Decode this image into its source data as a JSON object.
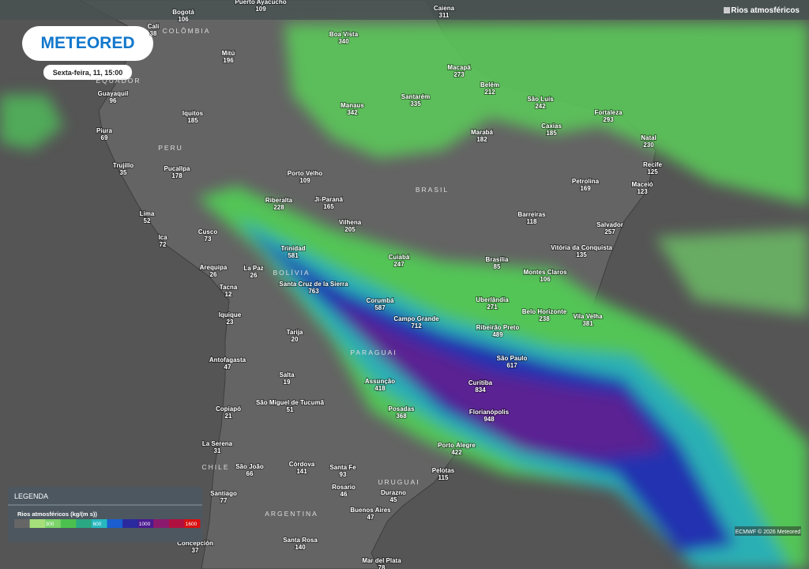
{
  "header": {
    "layer": "Rios atmosféricos",
    "logo": "METEORED",
    "datetime": "Sexta-feira, 11, 15:00"
  },
  "countries": [
    "COLÔMBIA",
    "EQUADOR",
    "PERU",
    "BRASIL",
    "BOLÍVIA",
    "PARAGUAI",
    "URUGUAI",
    "CHILE",
    "ARGENTINA"
  ],
  "cities": [
    {
      "name": "Bogotá",
      "value": 106
    },
    {
      "name": "Puerto Ayacucho",
      "value": 109
    },
    {
      "name": "Caiena",
      "value": 311
    },
    {
      "name": "Cali",
      "value": 38
    },
    {
      "name": "Boa Vista",
      "value": 340
    },
    {
      "name": "Mitú",
      "value": 196
    },
    {
      "name": "Macapá",
      "value": 273
    },
    {
      "name": "Belém",
      "value": 212
    },
    {
      "name": "Guayaquil",
      "value": 96
    },
    {
      "name": "São Luís",
      "value": 242
    },
    {
      "name": "Manaus",
      "value": 342
    },
    {
      "name": "Santarém",
      "value": 335
    },
    {
      "name": "Iquitos",
      "value": 185
    },
    {
      "name": "Fortaleza",
      "value": 293
    },
    {
      "name": "Caxias",
      "value": 185
    },
    {
      "name": "Marabá",
      "value": 182
    },
    {
      "name": "Piura",
      "value": 69
    },
    {
      "name": "Natal",
      "value": 230
    },
    {
      "name": "Trujillo",
      "value": 35
    },
    {
      "name": "Pucallpa",
      "value": 178
    },
    {
      "name": "Recife",
      "value": 125
    },
    {
      "name": "Porto Velho",
      "value": 109
    },
    {
      "name": "Maceió",
      "value": 123
    },
    {
      "name": "Petrolina",
      "value": 169
    },
    {
      "name": "Riberalta",
      "value": 228
    },
    {
      "name": "Ji-Paraná",
      "value": 165
    },
    {
      "name": "Barreiras",
      "value": 118
    },
    {
      "name": "Lima",
      "value": 52
    },
    {
      "name": "Salvador",
      "value": 257
    },
    {
      "name": "Vilhena",
      "value": 205
    },
    {
      "name": "Cusco",
      "value": 73
    },
    {
      "name": "Ica",
      "value": 72
    },
    {
      "name": "Trinidad",
      "value": 581
    },
    {
      "name": "Vitória da Conquista",
      "value": 135
    },
    {
      "name": "Cuiabá",
      "value": 247
    },
    {
      "name": "Brasília",
      "value": 85
    },
    {
      "name": "Arequipa",
      "value": 26
    },
    {
      "name": "La Paz",
      "value": 26
    },
    {
      "name": "Montes Claros",
      "value": 106
    },
    {
      "name": "Santa Cruz de la Sierra",
      "value": 763
    },
    {
      "name": "Tacna",
      "value": 12
    },
    {
      "name": "Corumbá",
      "value": 587
    },
    {
      "name": "Uberlândia",
      "value": 271
    },
    {
      "name": "Belo Horizonte",
      "value": 238
    },
    {
      "name": "Iquique",
      "value": 23
    },
    {
      "name": "Vila Velha",
      "value": 381
    },
    {
      "name": "Campo Grande",
      "value": 712
    },
    {
      "name": "Ribeirão Preto",
      "value": 489
    },
    {
      "name": "Tarija",
      "value": 20
    },
    {
      "name": "São Paulo",
      "value": 617
    },
    {
      "name": "Antofagasta",
      "value": 47
    },
    {
      "name": "Salta",
      "value": 19
    },
    {
      "name": "Assunção",
      "value": 418
    },
    {
      "name": "Curitiba",
      "value": 834
    },
    {
      "name": "São Miguel de Tucumã",
      "value": 51
    },
    {
      "name": "Posadas",
      "value": 368
    },
    {
      "name": "Copiapó",
      "value": 21
    },
    {
      "name": "Florianópolis",
      "value": 948
    },
    {
      "name": "La Serena",
      "value": 31
    },
    {
      "name": "Porto Alegre",
      "value": 422
    },
    {
      "name": "São João",
      "value": 66
    },
    {
      "name": "Córdova",
      "value": 141
    },
    {
      "name": "Santa Fe",
      "value": 93
    },
    {
      "name": "Pelotas",
      "value": 115
    },
    {
      "name": "Rosario",
      "value": 46
    },
    {
      "name": "Durazno",
      "value": 45
    },
    {
      "name": "Santiago",
      "value": 77
    },
    {
      "name": "Buenos Aires",
      "value": 47
    },
    {
      "name": "Santa Rosa",
      "value": 140
    },
    {
      "name": "Concepción",
      "value": 37
    },
    {
      "name": "Mar del Plata",
      "value": 78
    }
  ],
  "legend": {
    "title": "LEGENDA",
    "subtitle": "Rios atmosféricos (kg/(m s))",
    "ticks": [
      300,
      600,
      1000,
      1600
    ],
    "colors": [
      "#666666",
      "#a6e07a",
      "#7cd36a",
      "#4cc04f",
      "#2aa884",
      "#27b8c0",
      "#1a5ed0",
      "#2a2a9e",
      "#4a1a90",
      "#8b1a6e",
      "#b01040",
      "#d81010"
    ]
  },
  "credit": "ECMWF © 2026 Meteored"
}
